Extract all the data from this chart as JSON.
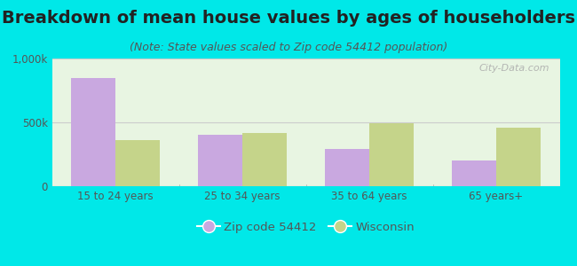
{
  "title": "Breakdown of mean house values by ages of householders",
  "subtitle": "(Note: State values scaled to Zip code 54412 population)",
  "categories": [
    "15 to 24 years",
    "25 to 34 years",
    "35 to 64 years",
    "65 years+"
  ],
  "zip_values": [
    850000,
    400000,
    290000,
    200000
  ],
  "wi_values": [
    360000,
    420000,
    490000,
    455000
  ],
  "zip_color": "#c9a8e0",
  "wi_color": "#c5d48a",
  "background_color": "#00e8e8",
  "plot_bg_color": "#e8f5e0",
  "ylim": [
    0,
    1000000
  ],
  "yticks": [
    0,
    500000,
    1000000
  ],
  "ytick_labels": [
    "0",
    "500k",
    "1,000k"
  ],
  "legend_zip_label": "Zip code 54412",
  "legend_wi_label": "Wisconsin",
  "watermark": "City-Data.com",
  "title_fontsize": 14,
  "subtitle_fontsize": 9,
  "tick_fontsize": 8.5,
  "legend_fontsize": 9.5,
  "bar_width": 0.35,
  "grid_color": "#cccccc",
  "title_color": "#222222",
  "subtitle_color": "#555555",
  "tick_color": "#555555"
}
